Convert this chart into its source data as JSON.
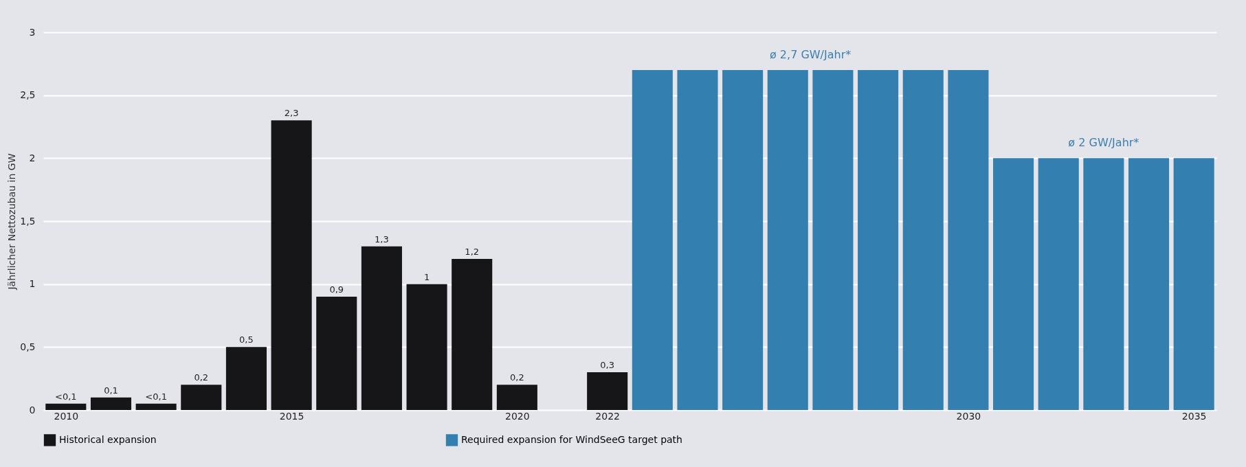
{
  "chart_data": {
    "type": "bar",
    "ylabel": "Jährlicher Nettozubau in GW",
    "xlim": [
      2009.5,
      2035.5
    ],
    "xticks": [
      2010,
      2015,
      2020,
      2022,
      2030,
      2035
    ],
    "ylim": [
      0,
      3
    ],
    "yticks": [
      0,
      {
        "value": 0.5,
        "label": "0,5"
      },
      1,
      {
        "value": 1.5,
        "label": "1,5"
      },
      2,
      {
        "value": 2.5,
        "label": "2,5"
      },
      3
    ],
    "grid": "y",
    "legend": "bottom",
    "series": [
      {
        "name": "Historical expansion",
        "color": "#161618",
        "x": [
          2010,
          2011,
          2012,
          2013,
          2014,
          2015,
          2016,
          2017,
          2018,
          2019,
          2020,
          2021,
          2022
        ],
        "values": [
          0.05,
          0.1,
          0.05,
          0.2,
          0.5,
          2.3,
          0.9,
          1.3,
          1,
          1.2,
          0.2,
          0,
          0.3
        ],
        "value_labels": [
          "<0,1",
          "0,1",
          "<0,1",
          "0,2",
          "0,5",
          "2,3",
          "0,9",
          "1,3",
          "1",
          "1,2",
          "0,2",
          null,
          "0,3"
        ]
      },
      {
        "name": "Required expansion for WindSeeG target path",
        "color": "#3380b0",
        "x": [
          2023,
          2024,
          2025,
          2026,
          2027,
          2028,
          2029,
          2030,
          2031,
          2032,
          2033,
          2034,
          2035
        ],
        "values": [
          2.7,
          2.7,
          2.7,
          2.7,
          2.7,
          2.7,
          2.7,
          2.7,
          2,
          2,
          2,
          2,
          2
        ]
      }
    ],
    "annotations": [
      {
        "text": "ø 2,7 GW/Jahr*",
        "x": 2026.5,
        "y": 2.7
      },
      {
        "text": "ø 2 GW/Jahr*",
        "x": 2033,
        "y": 2
      }
    ]
  }
}
